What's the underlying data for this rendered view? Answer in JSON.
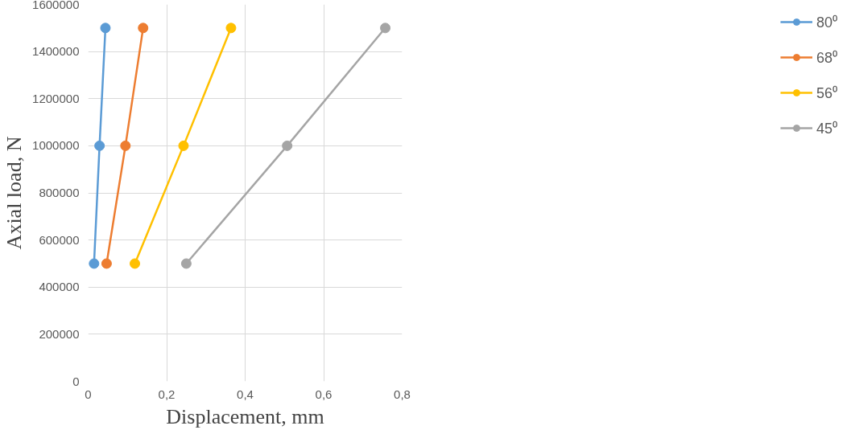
{
  "chart_data": {
    "type": "line",
    "xlabel": "Displacement, mm",
    "ylabel": "Axial load, N",
    "xlim": [
      0,
      0.8
    ],
    "ylim": [
      0,
      1600000
    ],
    "xticks": [
      0,
      {
        "value": 0.2,
        "label": "0,2"
      },
      {
        "value": 0.4,
        "label": "0,4"
      },
      {
        "value": 0.6,
        "label": "0,6"
      },
      {
        "value": 0.8,
        "label": "0,8"
      }
    ],
    "yticks": [
      0,
      200000,
      400000,
      600000,
      800000,
      1000000,
      1200000,
      1400000,
      1600000
    ],
    "grid": true,
    "legend": "right",
    "marker": "circle",
    "line_style": "solid",
    "series": [
      {
        "name": "80⁰",
        "color": "#5b9bd5",
        "x": [
          0.015,
          0.029,
          0.044
        ],
        "values": [
          500000,
          1000000,
          1500000
        ]
      },
      {
        "name": "68⁰",
        "color": "#ed7d31",
        "x": [
          0.047,
          0.095,
          0.14
        ],
        "values": [
          500000,
          1000000,
          1500000
        ]
      },
      {
        "name": "56⁰",
        "color": "#ffc000",
        "x": [
          0.119,
          0.243,
          0.364
        ],
        "values": [
          500000,
          1000000,
          1500000
        ]
      },
      {
        "name": "45⁰",
        "color": "#a5a5a5",
        "x": [
          0.25,
          0.507,
          0.757
        ],
        "values": [
          500000,
          1000000,
          1500000
        ]
      }
    ]
  }
}
